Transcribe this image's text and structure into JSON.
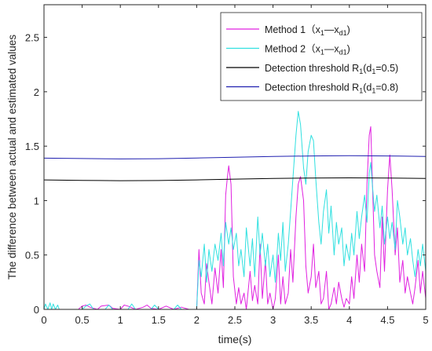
{
  "chart_data": {
    "type": "line",
    "xlabel": "time(s)",
    "ylabel": "The difference between actual and estimated values",
    "xlim": [
      0,
      5
    ],
    "ylim": [
      0,
      2.8
    ],
    "x_ticks": [
      0,
      0.5,
      1,
      1.5,
      2,
      2.5,
      3,
      3.5,
      4,
      4.5,
      5
    ],
    "x_tick_labels": [
      "0",
      "0.5",
      "1",
      "1.5",
      "2",
      "2.5",
      "3",
      "3.5",
      "4",
      "4.5",
      "5"
    ],
    "y_ticks": [
      0,
      0.5,
      1,
      1.5,
      2,
      2.5
    ],
    "y_tick_labels": [
      "0",
      "0.5",
      "1",
      "1.5",
      "2",
      "2.5"
    ],
    "grid": false,
    "legend_position": "top-right",
    "series": [
      {
        "name": "Method 1（x1—xd1)",
        "legend": {
          "main": "Method 1（x",
          "sub1": "1",
          "mid": "—x",
          "sub2": "d1",
          "end": ")"
        },
        "color": "#e020e0",
        "x": [
          0,
          0.45,
          0.5,
          0.55,
          0.6,
          0.7,
          0.75,
          0.85,
          0.9,
          1.0,
          1.05,
          1.1,
          1.2,
          1.3,
          1.35,
          1.4,
          1.5,
          1.6,
          1.7,
          1.8,
          1.9,
          2.0,
          2.03,
          2.06,
          2.1,
          2.13,
          2.16,
          2.2,
          2.24,
          2.28,
          2.32,
          2.35,
          2.38,
          2.4,
          2.42,
          2.45,
          2.48,
          2.52,
          2.55,
          2.58,
          2.62,
          2.65,
          2.7,
          2.73,
          2.76,
          2.8,
          2.83,
          2.86,
          2.9,
          2.93,
          2.96,
          3.0,
          3.03,
          3.07,
          3.1,
          3.13,
          3.16,
          3.2,
          3.23,
          3.26,
          3.3,
          3.33,
          3.36,
          3.4,
          3.43,
          3.46,
          3.5,
          3.53,
          3.56,
          3.6,
          3.63,
          3.66,
          3.7,
          3.73,
          3.76,
          3.8,
          3.83,
          3.86,
          3.9,
          3.93,
          3.96,
          4.0,
          4.03,
          4.06,
          4.1,
          4.13,
          4.16,
          4.2,
          4.23,
          4.26,
          4.28,
          4.3,
          4.33,
          4.36,
          4.4,
          4.43,
          4.46,
          4.5,
          4.53,
          4.56,
          4.6,
          4.63,
          4.66,
          4.7,
          4.73,
          4.76,
          4.8,
          4.83,
          4.86,
          4.9,
          4.93,
          4.96,
          5.0
        ],
        "y": [
          0.0,
          0.0,
          0.03,
          0.04,
          0.02,
          0.0,
          0.03,
          0.04,
          0.01,
          0.0,
          0.04,
          0.03,
          0.0,
          0.02,
          0.04,
          0.01,
          0.0,
          0.03,
          0.0,
          0.02,
          0.0,
          0.0,
          0.55,
          0.15,
          0.05,
          0.42,
          0.25,
          0.05,
          0.38,
          0.15,
          0.55,
          0.2,
          1.05,
          1.2,
          1.32,
          1.15,
          0.3,
          0.05,
          0.2,
          0.05,
          0.15,
          0.0,
          0.35,
          0.08,
          0.22,
          0.05,
          0.6,
          0.1,
          0.45,
          0.05,
          0.15,
          0.0,
          0.1,
          0.5,
          0.05,
          0.3,
          0.05,
          0.15,
          0.55,
          0.25,
          0.85,
          1.15,
          1.22,
          1.0,
          0.4,
          0.15,
          0.3,
          0.6,
          0.2,
          0.35,
          0.05,
          0.1,
          0.35,
          0.0,
          0.05,
          0.2,
          0.05,
          0.25,
          0.1,
          0.02,
          0.1,
          0.05,
          0.3,
          0.1,
          0.5,
          0.25,
          0.6,
          0.35,
          1.15,
          1.6,
          1.68,
          1.2,
          0.5,
          0.35,
          0.2,
          0.85,
          0.35,
          1.1,
          1.42,
          1.1,
          0.5,
          0.75,
          0.25,
          0.45,
          0.15,
          0.3,
          0.15,
          0.05,
          0.2,
          0.45,
          0.15,
          0.35,
          0.1
        ]
      },
      {
        "name": "Method 2（x1—xd1)",
        "legend": {
          "main": "Method 2（x",
          "sub1": "1",
          "mid": "—x",
          "sub2": "d1",
          "end": ")"
        },
        "color": "#30e0e0",
        "x": [
          0,
          0.02,
          0.05,
          0.08,
          0.1,
          0.12,
          0.15,
          0.18,
          0.2,
          0.5,
          0.55,
          0.6,
          0.65,
          0.8,
          0.85,
          0.9,
          1.1,
          1.15,
          1.2,
          1.4,
          1.45,
          1.5,
          1.7,
          1.75,
          1.8,
          2.0,
          2.03,
          2.06,
          2.1,
          2.13,
          2.16,
          2.2,
          2.24,
          2.28,
          2.32,
          2.35,
          2.38,
          2.42,
          2.45,
          2.48,
          2.52,
          2.55,
          2.58,
          2.62,
          2.65,
          2.7,
          2.73,
          2.76,
          2.8,
          2.83,
          2.86,
          2.9,
          2.93,
          2.96,
          3.0,
          3.03,
          3.07,
          3.1,
          3.13,
          3.16,
          3.2,
          3.23,
          3.26,
          3.3,
          3.33,
          3.36,
          3.4,
          3.43,
          3.46,
          3.5,
          3.53,
          3.56,
          3.6,
          3.63,
          3.66,
          3.7,
          3.73,
          3.76,
          3.8,
          3.83,
          3.86,
          3.9,
          3.93,
          3.96,
          4.0,
          4.03,
          4.06,
          4.1,
          4.13,
          4.16,
          4.2,
          4.23,
          4.26,
          4.28,
          4.3,
          4.33,
          4.36,
          4.4,
          4.43,
          4.46,
          4.5,
          4.53,
          4.56,
          4.6,
          4.63,
          4.66,
          4.7,
          4.73,
          4.76,
          4.8,
          4.83,
          4.86,
          4.9,
          4.93,
          4.96,
          5.0
        ],
        "y": [
          0.0,
          0.05,
          0.0,
          0.06,
          0.0,
          0.05,
          0.0,
          0.04,
          0.0,
          0.0,
          0.03,
          0.05,
          0.0,
          0.0,
          0.04,
          0.0,
          0.0,
          0.05,
          0.0,
          0.0,
          0.04,
          0.0,
          0.0,
          0.04,
          0.0,
          0.0,
          0.45,
          0.3,
          0.6,
          0.25,
          0.55,
          0.35,
          0.6,
          0.45,
          0.7,
          0.4,
          0.8,
          0.6,
          0.75,
          0.55,
          0.7,
          0.4,
          0.55,
          0.3,
          0.75,
          0.4,
          0.65,
          0.3,
          0.85,
          0.5,
          0.7,
          0.4,
          0.6,
          0.3,
          0.5,
          0.25,
          0.7,
          0.45,
          0.8,
          0.35,
          0.6,
          0.9,
          1.2,
          1.6,
          1.82,
          1.7,
          1.3,
          1.15,
          1.45,
          1.6,
          1.55,
          1.2,
          0.8,
          0.6,
          0.9,
          1.1,
          0.7,
          0.95,
          0.5,
          0.8,
          0.6,
          0.75,
          0.4,
          0.6,
          0.45,
          0.7,
          0.5,
          0.9,
          0.65,
          0.85,
          1.05,
          0.8,
          1.25,
          1.35,
          1.15,
          0.9,
          1.05,
          0.75,
          0.95,
          0.6,
          0.85,
          0.65,
          0.8,
          0.55,
          1.0,
          0.85,
          0.6,
          0.75,
          0.5,
          0.65,
          0.45,
          0.3,
          0.55,
          0.4,
          0.6,
          0.35
        ]
      },
      {
        "name": "Detection threshold R1(d1=0.5)",
        "legend": {
          "main": "Detection threshold R",
          "sub1": "1",
          "mid": "(d",
          "sub2": "1",
          "end": "=0.5)"
        },
        "color": "#000000",
        "x": [
          0,
          0.5,
          1,
          1.5,
          2,
          2.5,
          3,
          3.5,
          4,
          4.5,
          5
        ],
        "y": [
          1.19,
          1.186,
          1.183,
          1.184,
          1.19,
          1.197,
          1.203,
          1.207,
          1.209,
          1.207,
          1.204
        ]
      },
      {
        "name": "Detection threshold R1(d1=0.8)",
        "legend": {
          "main": "Detection threshold R",
          "sub1": "1",
          "mid": "(d",
          "sub2": "1",
          "end": "=0.8)"
        },
        "color": "#2020b0",
        "x": [
          0,
          0.5,
          1,
          1.5,
          2,
          2.5,
          3,
          3.5,
          4,
          4.5,
          5
        ],
        "y": [
          1.39,
          1.386,
          1.383,
          1.385,
          1.391,
          1.398,
          1.405,
          1.41,
          1.412,
          1.41,
          1.406
        ]
      }
    ]
  }
}
